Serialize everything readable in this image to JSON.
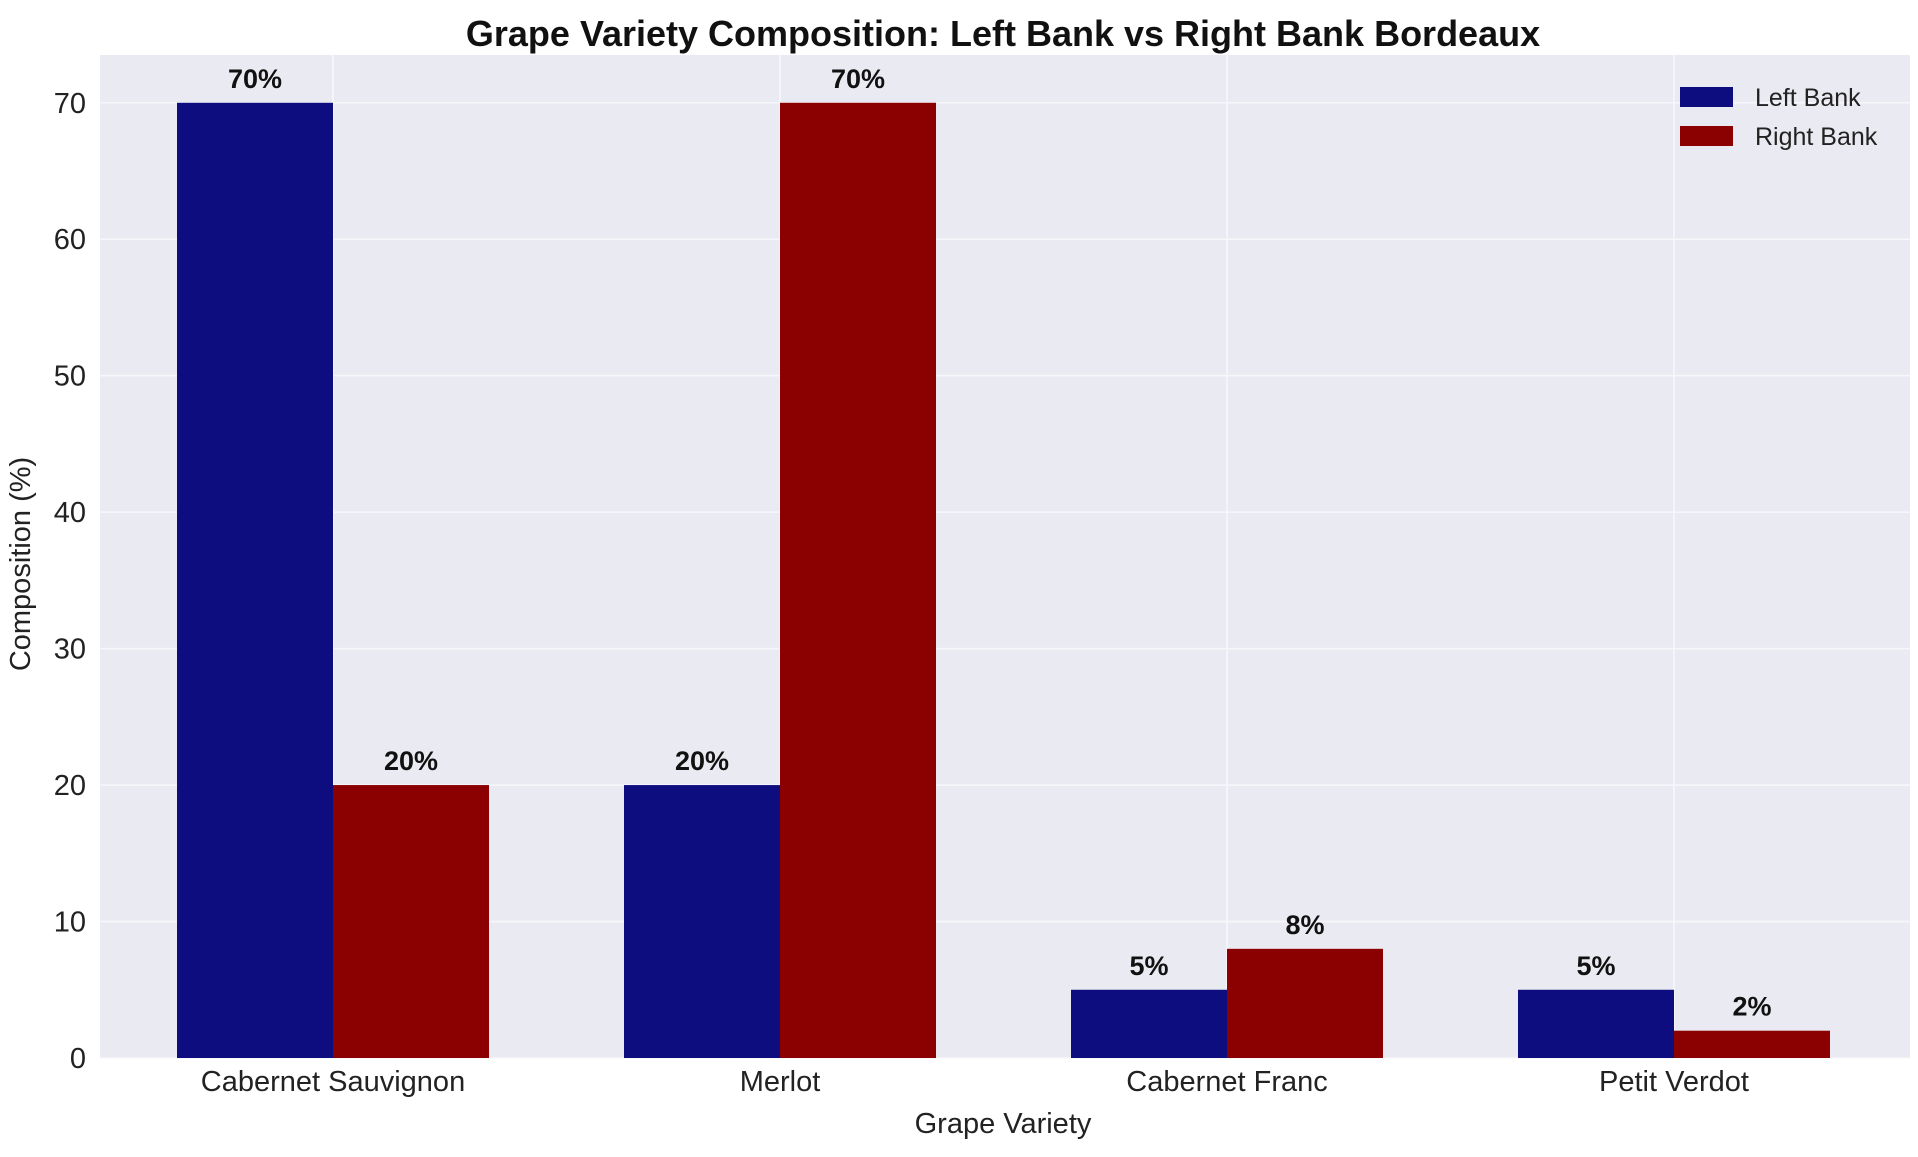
{
  "chart_data": {
    "type": "bar",
    "title": "Grape Variety Composition: Left Bank vs Right Bank Bordeaux",
    "xlabel": "Grape Variety",
    "ylabel": "Composition (%)",
    "categories": [
      "Cabernet Sauvignon",
      "Merlot",
      "Cabernet Franc",
      "Petit Verdot"
    ],
    "series": [
      {
        "name": "Left Bank",
        "color": "#0d0d80",
        "values": [
          70,
          20,
          5,
          5
        ],
        "labels": [
          "70%",
          "20%",
          "5%",
          "5%"
        ]
      },
      {
        "name": "Right Bank",
        "color": "#8b0000",
        "values": [
          20,
          70,
          8,
          2
        ],
        "labels": [
          "20%",
          "70%",
          "8%",
          "2%"
        ]
      }
    ],
    "ylim": [
      0,
      73.5
    ],
    "yticks": [
      0,
      10,
      20,
      30,
      40,
      50,
      60,
      70
    ],
    "grid": true,
    "legend_position": "top-right",
    "plot_background": "#eaeaf2"
  }
}
